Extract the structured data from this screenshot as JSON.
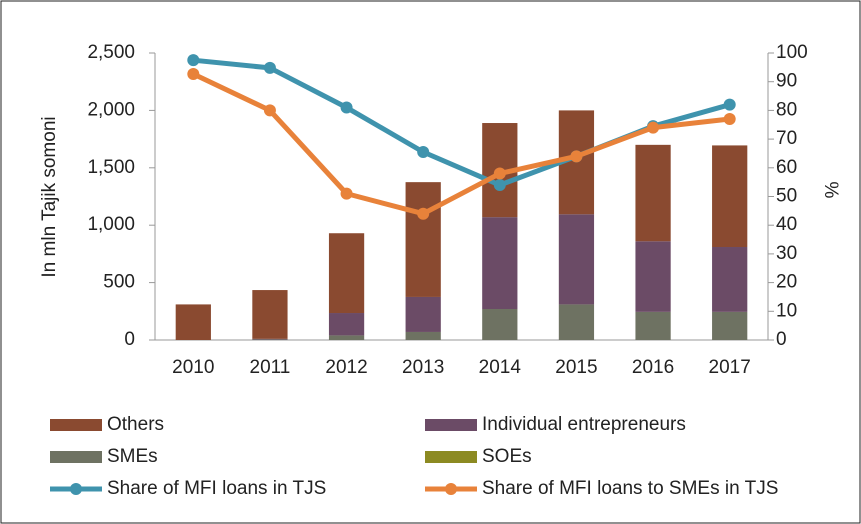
{
  "chart_data": {
    "type": "bar",
    "ylabel": "In mln Tajik somoni",
    "y2label": "%",
    "categories": [
      "2010",
      "2011",
      "2012",
      "2013",
      "2014",
      "2015",
      "2016",
      "2017"
    ],
    "series": [
      {
        "name": "Others",
        "color": "#8a4a30",
        "values": [
          310,
          425,
          695,
          1000,
          820,
          905,
          840,
          885
        ]
      },
      {
        "name": "Individual entrepreneurs",
        "color": "#6b4b66",
        "values": [
          0,
          5,
          195,
          305,
          800,
          785,
          615,
          565
        ]
      },
      {
        "name": "SMEs",
        "color": "#6e7262",
        "values": [
          0,
          5,
          40,
          70,
          270,
          310,
          245,
          245
        ]
      },
      {
        "name": "SOEs",
        "color": "#8c8a22",
        "values": [
          0,
          0,
          0,
          0,
          0,
          0,
          0,
          0
        ]
      },
      {
        "name": "Share of MFI loans in TJS",
        "color": "#3f93ad",
        "type": "line",
        "axis": "y2",
        "values": [
          97.5,
          94.8,
          81,
          65.5,
          54,
          64,
          74.5,
          82
        ]
      },
      {
        "name": "Share of MFI loans to SMEs in TJS",
        "color": "#e8823a",
        "type": "line",
        "axis": "y2",
        "values": [
          92.7,
          80,
          51,
          44,
          58,
          64,
          74,
          77
        ]
      }
    ],
    "ylim": [
      0,
      2500
    ],
    "yticks": [
      0,
      500,
      {
        "value": 1000,
        "label": "1,000"
      },
      {
        "value": 1500,
        "label": "1,500"
      },
      {
        "value": 2000,
        "label": "2,000"
      },
      {
        "value": 2500,
        "label": "2,500"
      }
    ],
    "y2lim": [
      0,
      100
    ],
    "y2ticks": [
      0,
      10,
      20,
      30,
      40,
      50,
      60,
      70,
      80,
      90,
      100
    ],
    "grid": false
  }
}
